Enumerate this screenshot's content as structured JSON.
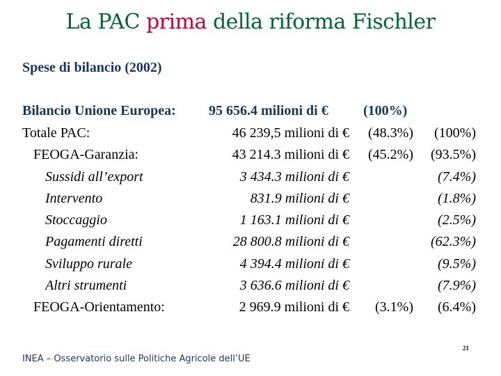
{
  "title": {
    "part1": "La PAC ",
    "highlight": "prima",
    "part2": " della riforma Fischler"
  },
  "colors": {
    "title": "#006633",
    "title_highlight": "#cc0033",
    "heading": "#17365d"
  },
  "subtitle": "Spese di bilancio (2002)",
  "eu_budget": {
    "label": "Bilancio Unione Europea:",
    "amount": "95 656.4 milioni di €",
    "pct": "(100%)"
  },
  "rows": [
    {
      "label": "Totale PAC:",
      "amount": "46 239,5 milioni di €",
      "pct1": "(48.3%)",
      "pct2": "(100%)"
    },
    {
      "label": "FEOGA-Garanzia:",
      "amount": "43 214.3 milioni di €",
      "pct1": "(45.2%)",
      "pct2": "(93.5%)"
    },
    {
      "label": "Sussidi all’export",
      "amount": "3 434.3 milioni di €",
      "pct1": "",
      "pct2": "(7.4%)"
    },
    {
      "label": "Intervento",
      "amount": "831.9 milioni di €",
      "pct1": "",
      "pct2": "(1.8%)"
    },
    {
      "label": "Stoccaggio",
      "amount": "1 163.1 milioni di €",
      "pct1": "",
      "pct2": "(2.5%)"
    },
    {
      "label": "Pagamenti diretti",
      "amount": "28 800.8 milioni di €",
      "pct1": "",
      "pct2": "(62.3%)"
    },
    {
      "label": "Sviluppo rurale",
      "amount": "4 394.4 milioni di €",
      "pct1": "",
      "pct2": "(9.5%)"
    },
    {
      "label": "Altri strumenti",
      "amount": "3 636.6 milioni di €",
      "pct1": "",
      "pct2": "(7.9%)"
    },
    {
      "label": "FEOGA-Orientamento:",
      "amount": "2 969.9 milioni di €",
      "pct1": "(3.1%)",
      "pct2": "(6.4%)"
    }
  ],
  "footer": "INEA – Osservatorio sulle Politiche Agricole dell’UE",
  "page_number": "21"
}
